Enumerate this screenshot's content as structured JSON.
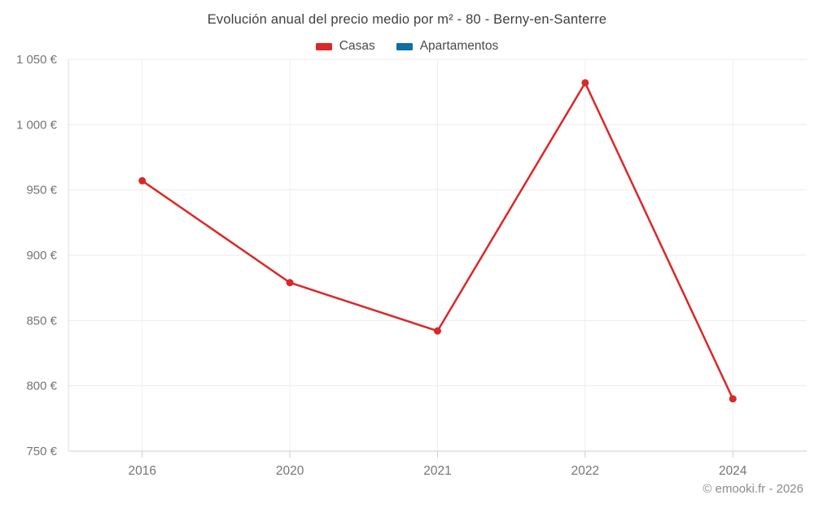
{
  "header": {
    "title": "Evolución anual del precio medio por m² - 80 - Berny-en-Santerre"
  },
  "legend": {
    "items": [
      {
        "label": "Casas",
        "color": "#dc2727"
      },
      {
        "label": "Apartamentos",
        "color": "#0e6ea5"
      }
    ]
  },
  "footer": {
    "credit": "© emooki.fr - 2026"
  },
  "chart_data": {
    "type": "line",
    "title": "Evolución anual del precio medio por m² - 80 - Berny-en-Santerre",
    "xlabel": "",
    "ylabel": "",
    "unit": "€",
    "categories": [
      "2016",
      "2020",
      "2021",
      "2022",
      "2024"
    ],
    "series": [
      {
        "name": "Casas",
        "color": "#dc2727",
        "values": [
          957,
          879,
          842,
          1032,
          790
        ]
      },
      {
        "name": "Apartamentos",
        "color": "#0e6ea5",
        "values": []
      }
    ],
    "ylim": [
      750,
      1050
    ],
    "yticks": [
      {
        "value": 750,
        "label": "750 €"
      },
      {
        "value": 800,
        "label": "800 €"
      },
      {
        "value": 850,
        "label": "850 €"
      },
      {
        "value": 900,
        "label": "900 €"
      },
      {
        "value": 950,
        "label": "950 €"
      },
      {
        "value": 1000,
        "label": "1 000 €"
      },
      {
        "value": 1050,
        "label": "1 050 €"
      }
    ],
    "grid": true,
    "legend_position": "top"
  }
}
